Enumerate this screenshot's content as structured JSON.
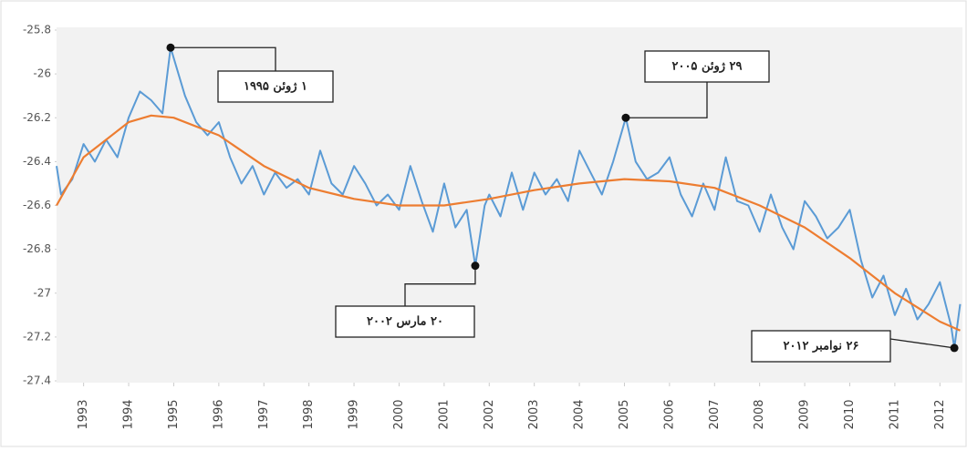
{
  "chart_data": {
    "type": "line",
    "ylim": [
      -27.4,
      -25.8
    ],
    "yticks": [
      -27.4,
      -27.2,
      -27,
      -26.8,
      -26.6,
      -26.4,
      -26.2,
      -26,
      -25.8
    ],
    "xlim": [
      1992.4,
      2012.5
    ],
    "xticks": [
      1993,
      1994,
      1995,
      1996,
      1997,
      1998,
      1999,
      2000,
      2001,
      2002,
      2003,
      2004,
      2005,
      2006,
      2007,
      2008,
      2009,
      2010,
      2011,
      2012
    ],
    "grid": false,
    "series": [
      {
        "color": "#5b9bd5",
        "x": [
          1992.4,
          1992.5,
          1992.75,
          1993.0,
          1993.25,
          1993.5,
          1993.75,
          1994.0,
          1994.25,
          1994.5,
          1994.75,
          1994.93,
          1995.25,
          1995.5,
          1995.75,
          1996.0,
          1996.25,
          1996.5,
          1996.75,
          1997.0,
          1997.25,
          1997.5,
          1997.75,
          1998.0,
          1998.25,
          1998.5,
          1998.75,
          1999.0,
          1999.25,
          1999.5,
          1999.75,
          2000.0,
          2000.25,
          2000.5,
          2000.75,
          2001.0,
          2001.25,
          2001.5,
          2001.69,
          2001.9,
          2002.0,
          2002.25,
          2002.5,
          2002.75,
          2003.0,
          2003.25,
          2003.5,
          2003.75,
          2004.0,
          2004.25,
          2004.5,
          2004.75,
          2005.03,
          2005.25,
          2005.5,
          2005.75,
          2006.0,
          2006.25,
          2006.5,
          2006.75,
          2007.0,
          2007.25,
          2007.5,
          2007.75,
          2008.0,
          2008.25,
          2008.5,
          2008.75,
          2009.0,
          2009.25,
          2009.5,
          2009.75,
          2010.0,
          2010.25,
          2010.5,
          2010.75,
          2011.0,
          2011.25,
          2011.5,
          2011.75,
          2012.0,
          2012.25,
          2012.32,
          2012.45
        ],
        "values": [
          -26.42,
          -26.55,
          -26.48,
          -26.32,
          -26.4,
          -26.3,
          -26.38,
          -26.2,
          -26.08,
          -26.12,
          -26.18,
          -25.88,
          -26.1,
          -26.22,
          -26.28,
          -26.22,
          -26.38,
          -26.5,
          -26.42,
          -26.55,
          -26.45,
          -26.52,
          -26.48,
          -26.55,
          -26.35,
          -26.5,
          -26.55,
          -26.42,
          -26.5,
          -26.6,
          -26.55,
          -26.62,
          -26.42,
          -26.58,
          -26.72,
          -26.5,
          -26.7,
          -26.62,
          -26.875,
          -26.6,
          -26.55,
          -26.65,
          -26.45,
          -26.62,
          -26.45,
          -26.55,
          -26.48,
          -26.58,
          -26.35,
          -26.45,
          -26.55,
          -26.4,
          -26.2,
          -26.4,
          -26.48,
          -26.45,
          -26.38,
          -26.55,
          -26.65,
          -26.5,
          -26.62,
          -26.38,
          -26.58,
          -26.6,
          -26.72,
          -26.55,
          -26.7,
          -26.8,
          -26.58,
          -26.65,
          -26.75,
          -26.7,
          -26.62,
          -26.85,
          -27.02,
          -26.92,
          -27.1,
          -26.98,
          -27.12,
          -27.05,
          -26.95,
          -27.15,
          -27.25,
          -27.05
        ]
      },
      {
        "color": "#ed7d31",
        "x": [
          1992.4,
          1993,
          1994,
          1994.5,
          1995,
          1996,
          1997,
          1998,
          1999,
          2000,
          2001,
          2002,
          2003,
          2004,
          2005,
          2006,
          2007,
          2008,
          2009,
          2010,
          2011,
          2012,
          2012.45
        ],
        "values": [
          -26.6,
          -26.38,
          -26.22,
          -26.19,
          -26.2,
          -26.28,
          -26.42,
          -26.52,
          -26.57,
          -26.6,
          -26.6,
          -26.57,
          -26.53,
          -26.5,
          -26.48,
          -26.49,
          -26.52,
          -26.6,
          -26.7,
          -26.84,
          -27.0,
          -27.13,
          -27.17
        ]
      }
    ],
    "annotations": [
      {
        "x": 1994.93,
        "y": -25.88,
        "label": "۱ ژوئن ۱۹۹۵"
      },
      {
        "x": 2005.03,
        "y": -26.2,
        "label": "۲۹ ژوئن ۲۰۰۵"
      },
      {
        "x": 2001.69,
        "y": -26.875,
        "label": "۲۰ مارس ۲۰۰۲"
      },
      {
        "x": 2012.32,
        "y": -27.25,
        "label": "۲۶ نوامبر ۲۰۱۲"
      }
    ]
  }
}
